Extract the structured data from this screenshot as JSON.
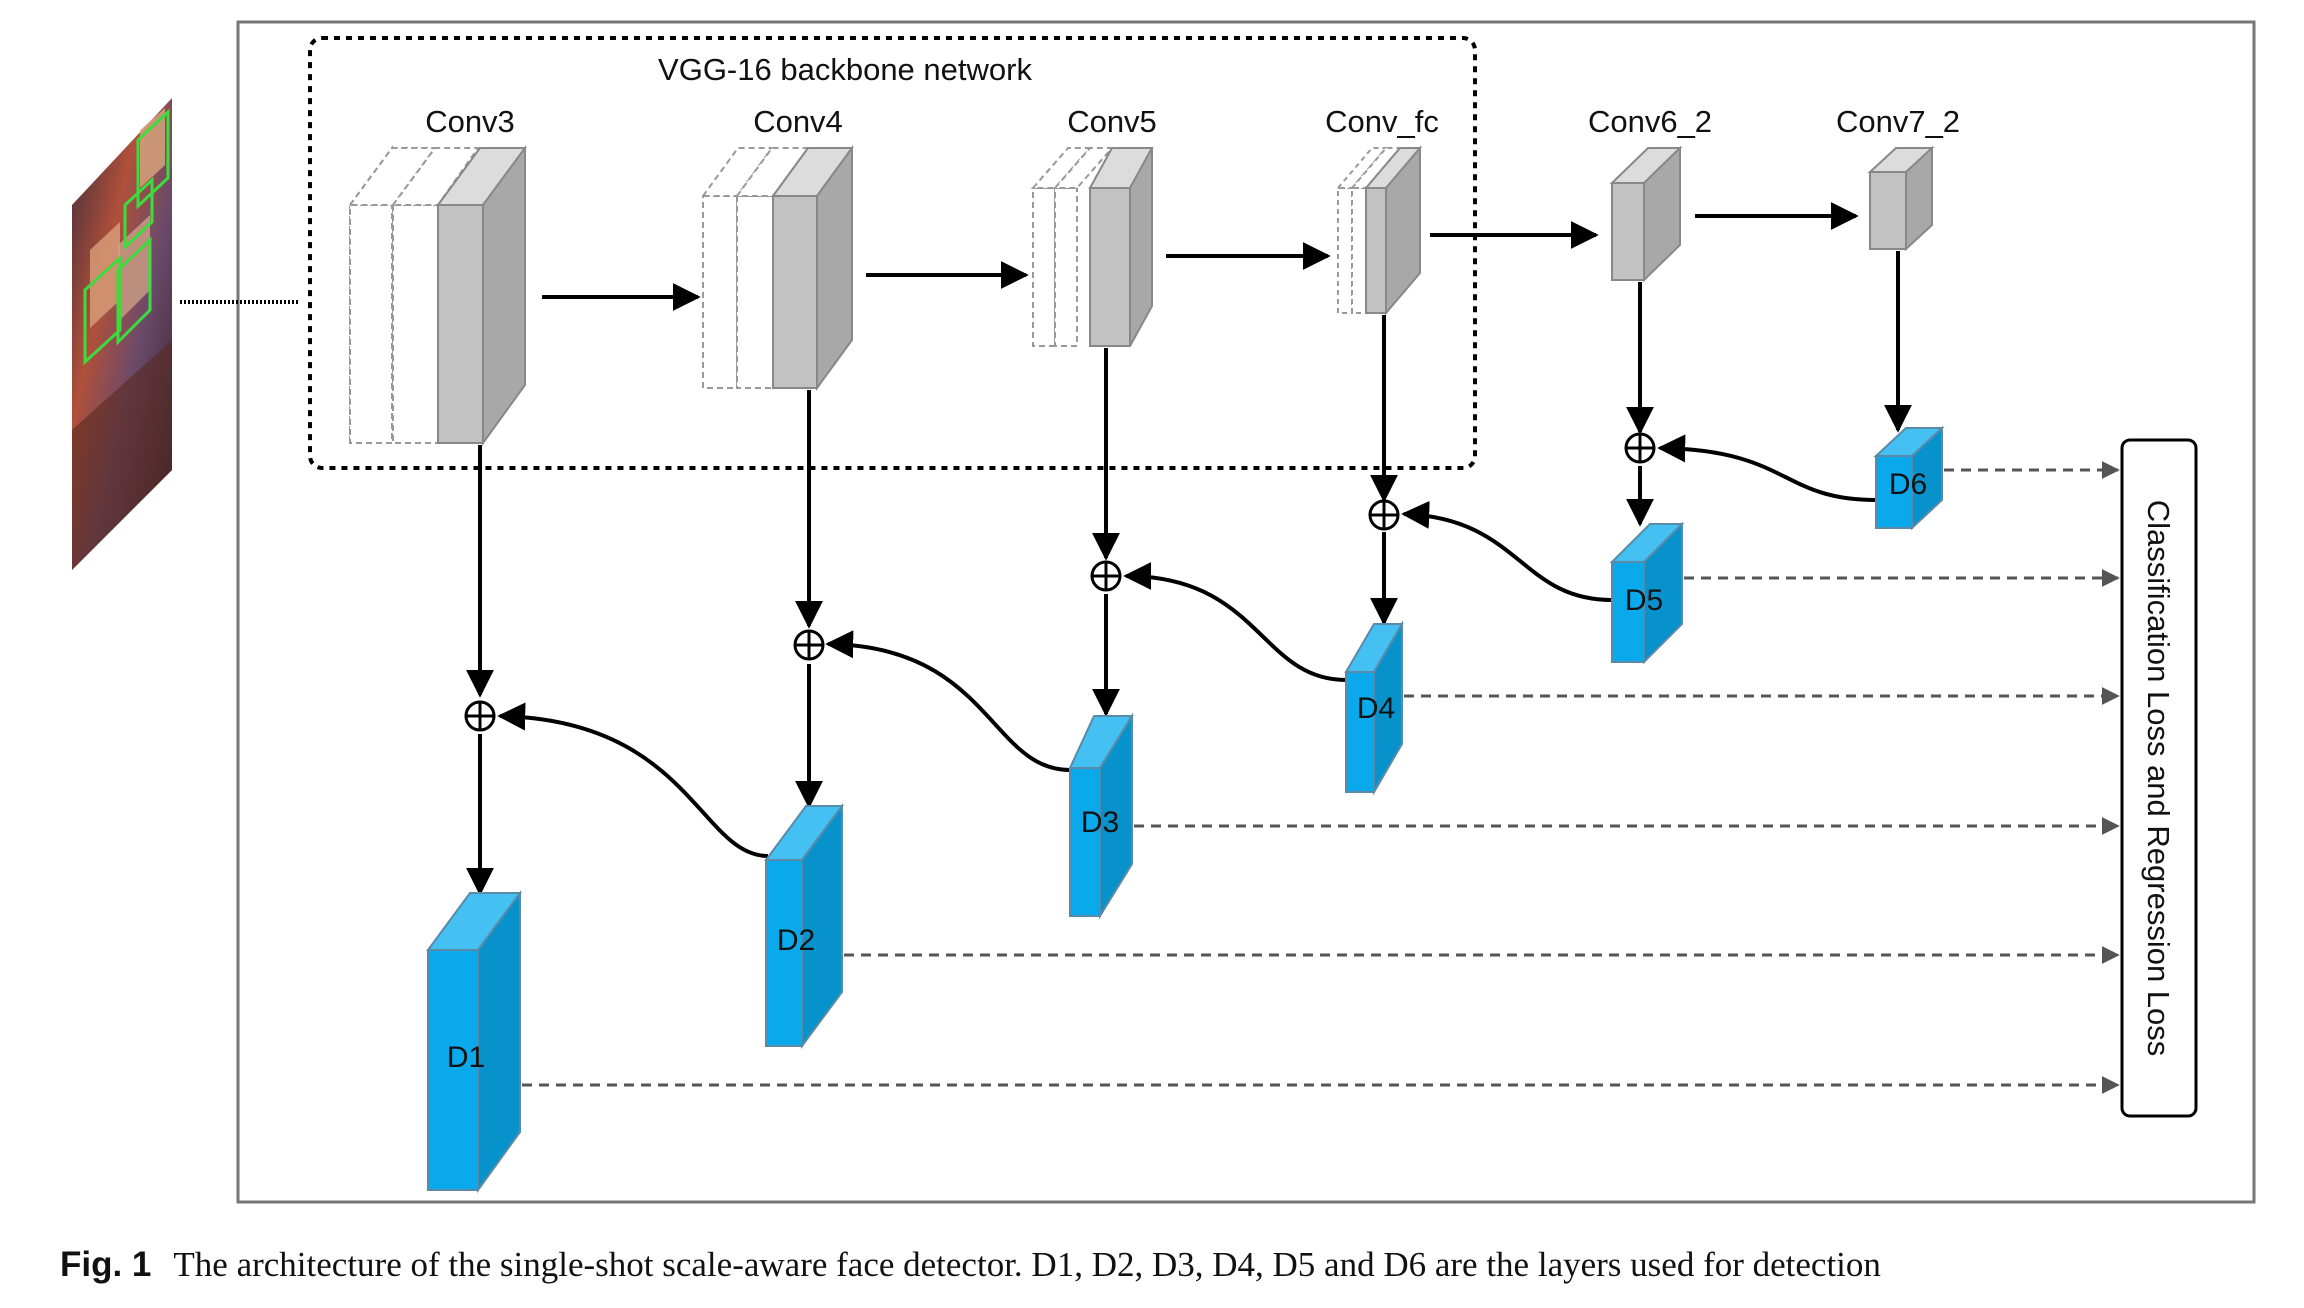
{
  "diagram": {
    "backbone_label": "VGG-16 backbone network",
    "layers": {
      "conv3": "Conv3",
      "conv4": "Conv4",
      "conv5": "Conv5",
      "conv_fc": "Conv_fc",
      "conv6_2": "Conv6_2",
      "conv7_2": "Conv7_2"
    },
    "detection_layers": {
      "d1": "D1",
      "d2": "D2",
      "d3": "D3",
      "d4": "D4",
      "d5": "D5",
      "d6": "D6"
    },
    "loss_label": "Classification Loss and Regression Loss",
    "colors": {
      "detection_fill": "#0aa9ec",
      "conv_fill": "#c2c2c2",
      "frame": "#777777"
    }
  },
  "caption": {
    "figure_label": "Fig. 1",
    "text": "The architecture of the single-shot scale-aware face detector. D1, D2, D3, D4, D5 and D6 are the layers used for detection"
  }
}
